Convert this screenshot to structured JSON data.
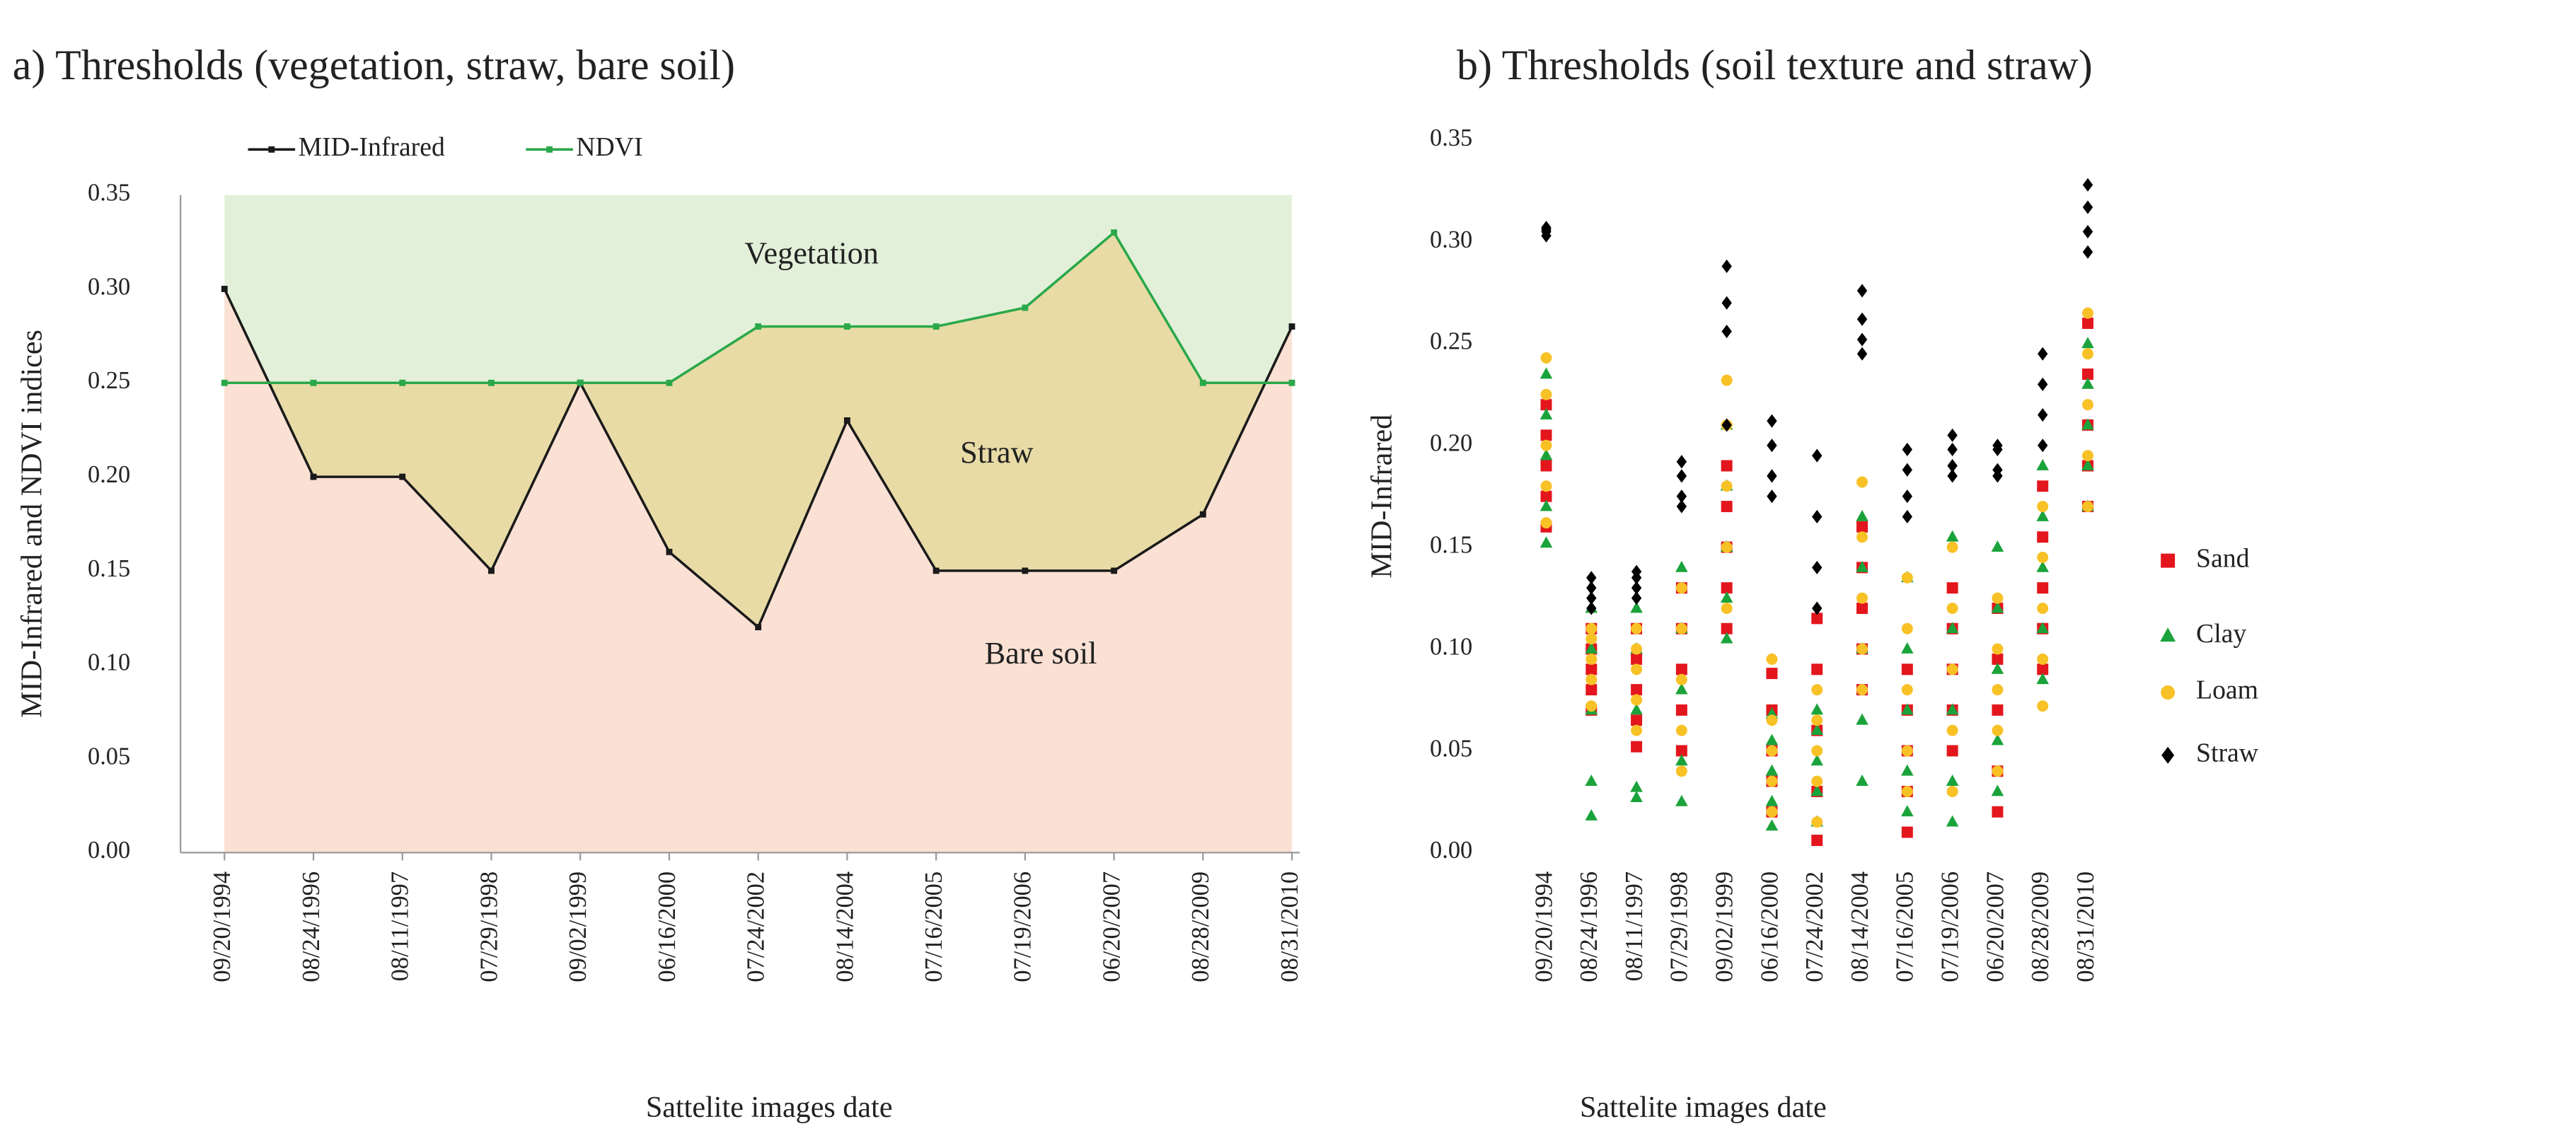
{
  "chart_data": [
    {
      "type": "line",
      "title": "a) Thresholds (vegetation, straw, bare soil)",
      "x_label": "Sattelite images date",
      "y_label": "MID-Infrared  and NDVI indices",
      "categories": [
        "09/20/1994",
        "08/24/1996",
        "08/11/1997",
        "07/29/1998",
        "09/02/1999",
        "06/16/2000",
        "07/24/2002",
        "08/14/2004",
        "07/16/2005",
        "07/19/2006",
        "06/20/2007",
        "08/28/2009",
        "08/31/2010"
      ],
      "series": [
        {
          "name": "MID-Infrared",
          "color": "#1a1a1a",
          "values": [
            0.3,
            0.2,
            0.2,
            0.15,
            0.25,
            0.16,
            0.12,
            0.23,
            0.15,
            0.15,
            0.15,
            0.18,
            0.28
          ]
        },
        {
          "name": "NDVI",
          "color": "#2aa84a",
          "values": [
            0.25,
            0.25,
            0.25,
            0.25,
            0.25,
            0.25,
            0.28,
            0.28,
            0.28,
            0.29,
            0.33,
            0.25,
            0.25
          ]
        }
      ],
      "regions": [
        {
          "label": "Vegetation",
          "color": "#e2f0d9"
        },
        {
          "label": "Straw",
          "color": "#e8dba6"
        },
        {
          "label": "Bare soil",
          "color": "#fbe1d4"
        }
      ],
      "ylim": [
        0,
        0.35
      ],
      "yticks": [
        {
          "value": 0,
          "label": "0.00"
        },
        {
          "value": 0.05,
          "label": "0.05"
        },
        {
          "value": 0.1,
          "label": "0.10"
        },
        {
          "value": 0.15,
          "label": "0.15"
        },
        {
          "value": 0.2,
          "label": "0.20"
        },
        {
          "value": 0.25,
          "label": "0.25"
        },
        {
          "value": 0.3,
          "label": "0.30"
        },
        {
          "value": 0.35,
          "label": "0.35"
        }
      ],
      "grid": false,
      "legend": "top"
    },
    {
      "type": "scatter",
      "title": "b) Thresholds (soil texture and straw)",
      "x_label": "Sattelite images date",
      "y_label": "MID-Infrared",
      "categories": [
        "09/20/1994",
        "08/24/1996",
        "08/11/1997",
        "07/29/1998",
        "09/02/1999",
        "06/16/2000",
        "07/24/2002",
        "08/14/2004",
        "07/16/2005",
        "07/19/2006",
        "06/20/2007",
        "08/28/2009",
        "08/31/2010"
      ],
      "series": [
        {
          "name": "Sand",
          "color": "#e3161d",
          "marker": "square",
          "values": [
            [
              0.16,
              0.175,
              0.19,
              0.205,
              0.22
            ],
            [
              0.07,
              0.08,
              0.09,
              0.1,
              0.11
            ],
            [
              0.052,
              0.065,
              0.08,
              0.095,
              0.11
            ],
            [
              0.05,
              0.07,
              0.09,
              0.11,
              0.13
            ],
            [
              0.11,
              0.13,
              0.15,
              0.17,
              0.19
            ],
            [
              0.02,
              0.035,
              0.05,
              0.07,
              0.088
            ],
            [
              0.006,
              0.03,
              0.06,
              0.09,
              0.115
            ],
            [
              0.08,
              0.1,
              0.12,
              0.14,
              0.16
            ],
            [
              0.01,
              0.03,
              0.05,
              0.07,
              0.09
            ],
            [
              0.05,
              0.07,
              0.09,
              0.11,
              0.13
            ],
            [
              0.02,
              0.04,
              0.07,
              0.095,
              0.12
            ],
            [
              0.09,
              0.11,
              0.13,
              0.155,
              0.18
            ],
            [
              0.17,
              0.19,
              0.21,
              0.235,
              0.26
            ]
          ]
        },
        {
          "name": "Clay",
          "color": "#1ba33b",
          "marker": "triangle",
          "values": [
            [
              0.152,
              0.17,
              0.195,
              0.215,
              0.235
            ],
            [
              0.018,
              0.035,
              0.07,
              0.1,
              0.12
            ],
            [
              0.027,
              0.032,
              0.07,
              0.1,
              0.12
            ],
            [
              0.025,
              0.045,
              0.08,
              0.11,
              0.14
            ],
            [
              0.105,
              0.125,
              0.15,
              0.18,
              0.21
            ],
            [
              0.013,
              0.025,
              0.04,
              0.055,
              0.068
            ],
            [
              0.015,
              0.03,
              0.045,
              0.06,
              0.07
            ],
            [
              0.035,
              0.065,
              0.1,
              0.14,
              0.165
            ],
            [
              0.02,
              0.04,
              0.07,
              0.1,
              0.135
            ],
            [
              0.015,
              0.035,
              0.07,
              0.11,
              0.155
            ],
            [
              0.03,
              0.055,
              0.09,
              0.12,
              0.15
            ],
            [
              0.085,
              0.11,
              0.14,
              0.165,
              0.19
            ],
            [
              0.17,
              0.19,
              0.21,
              0.23,
              0.25
            ]
          ]
        },
        {
          "name": "Loam",
          "color": "#f8c126",
          "marker": "circle",
          "values": [
            [
              0.162,
              0.18,
              0.2,
              0.225,
              0.243
            ],
            [
              0.072,
              0.085,
              0.095,
              0.105,
              0.11
            ],
            [
              0.06,
              0.075,
              0.09,
              0.1,
              0.11
            ],
            [
              0.04,
              0.06,
              0.085,
              0.11,
              0.13
            ],
            [
              0.12,
              0.15,
              0.18,
              0.21,
              0.232
            ],
            [
              0.02,
              0.035,
              0.05,
              0.065,
              0.095
            ],
            [
              0.015,
              0.035,
              0.05,
              0.065,
              0.08
            ],
            [
              0.08,
              0.1,
              0.125,
              0.155,
              0.182
            ],
            [
              0.03,
              0.05,
              0.08,
              0.11,
              0.135
            ],
            [
              0.03,
              0.06,
              0.09,
              0.12,
              0.15
            ],
            [
              0.04,
              0.06,
              0.08,
              0.1,
              0.125
            ],
            [
              0.072,
              0.095,
              0.12,
              0.145,
              0.17
            ],
            [
              0.17,
              0.195,
              0.22,
              0.245,
              0.265
            ]
          ]
        },
        {
          "name": "Straw",
          "color": "#000000",
          "marker": "diamond",
          "values": [
            [
              0.303,
              0.305,
              0.306,
              0.307
            ],
            [
              0.12,
              0.125,
              0.13,
              0.135
            ],
            [
              0.125,
              0.13,
              0.135,
              0.138
            ],
            [
              0.17,
              0.175,
              0.185,
              0.192
            ],
            [
              0.21,
              0.256,
              0.27,
              0.288
            ],
            [
              0.175,
              0.185,
              0.2,
              0.212
            ],
            [
              0.12,
              0.14,
              0.165,
              0.195
            ],
            [
              0.245,
              0.252,
              0.262,
              0.276
            ],
            [
              0.165,
              0.175,
              0.188,
              0.198
            ],
            [
              0.185,
              0.19,
              0.198,
              0.205
            ],
            [
              0.185,
              0.188,
              0.198,
              0.2
            ],
            [
              0.2,
              0.215,
              0.23,
              0.245
            ],
            [
              0.295,
              0.305,
              0.317,
              0.328
            ]
          ]
        }
      ],
      "ylim": [
        0,
        0.35
      ],
      "yticks": [
        {
          "value": 0,
          "label": "0.00"
        },
        {
          "value": 0.05,
          "label": "0.05"
        },
        {
          "value": 0.1,
          "label": "0.10"
        },
        {
          "value": 0.15,
          "label": "0.15"
        },
        {
          "value": 0.2,
          "label": "0.20"
        },
        {
          "value": 0.25,
          "label": "0.25"
        },
        {
          "value": 0.3,
          "label": "0.30"
        },
        {
          "value": 0.35,
          "label": "0.35"
        }
      ],
      "grid": false,
      "legend": "right"
    }
  ]
}
